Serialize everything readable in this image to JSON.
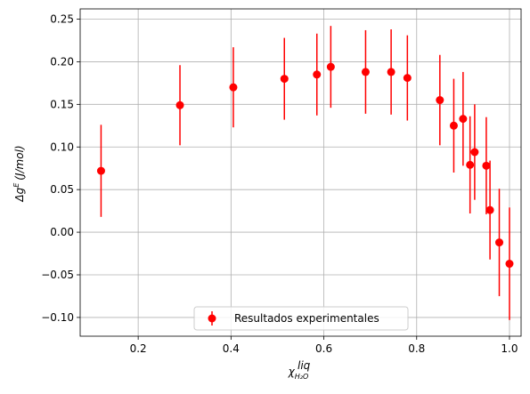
{
  "chart_data": {
    "type": "scatter",
    "xlabel": "χ",
    "xlabel_sup": "liq",
    "xlabel_sub": "H₂O",
    "ylabel": "Δg",
    "ylabel_sup": "E",
    "ylabel_unit": "(J/mol)",
    "xlim": [
      0.075,
      1.025
    ],
    "ylim": [
      -0.122,
      0.262
    ],
    "xticks": [
      0.2,
      0.4,
      0.6,
      0.8,
      1.0
    ],
    "xtick_labels": [
      "0.2",
      "0.4",
      "0.6",
      "0.8",
      "1.0"
    ],
    "yticks": [
      -0.1,
      -0.05,
      0.0,
      0.05,
      0.1,
      0.15,
      0.2,
      0.25
    ],
    "ytick_labels": [
      "−0.10",
      "−0.05",
      "0.00",
      "0.05",
      "0.10",
      "0.15",
      "0.20",
      "0.25"
    ],
    "grid": true,
    "legend_position": "bottom-center",
    "series": [
      {
        "name": "Resultados experimentales",
        "color": "#ff0000",
        "marker": "circle",
        "points": [
          {
            "x": 0.12,
            "y": 0.072,
            "err": 0.054
          },
          {
            "x": 0.29,
            "y": 0.149,
            "err": 0.047
          },
          {
            "x": 0.405,
            "y": 0.17,
            "err": 0.047
          },
          {
            "x": 0.515,
            "y": 0.18,
            "err": 0.048
          },
          {
            "x": 0.585,
            "y": 0.185,
            "err": 0.048
          },
          {
            "x": 0.615,
            "y": 0.194,
            "err": 0.048
          },
          {
            "x": 0.69,
            "y": 0.188,
            "err": 0.049
          },
          {
            "x": 0.745,
            "y": 0.188,
            "err": 0.05
          },
          {
            "x": 0.78,
            "y": 0.181,
            "err": 0.05
          },
          {
            "x": 0.85,
            "y": 0.155,
            "err": 0.053
          },
          {
            "x": 0.88,
            "y": 0.125,
            "err": 0.055
          },
          {
            "x": 0.9,
            "y": 0.133,
            "err": 0.055
          },
          {
            "x": 0.915,
            "y": 0.079,
            "err": 0.057
          },
          {
            "x": 0.925,
            "y": 0.094,
            "err": 0.056
          },
          {
            "x": 0.95,
            "y": 0.078,
            "err": 0.057
          },
          {
            "x": 0.958,
            "y": 0.026,
            "err": 0.058
          },
          {
            "x": 0.978,
            "y": -0.012,
            "err": 0.063
          },
          {
            "x": 1.0,
            "y": -0.037,
            "err": 0.066
          }
        ]
      }
    ]
  }
}
